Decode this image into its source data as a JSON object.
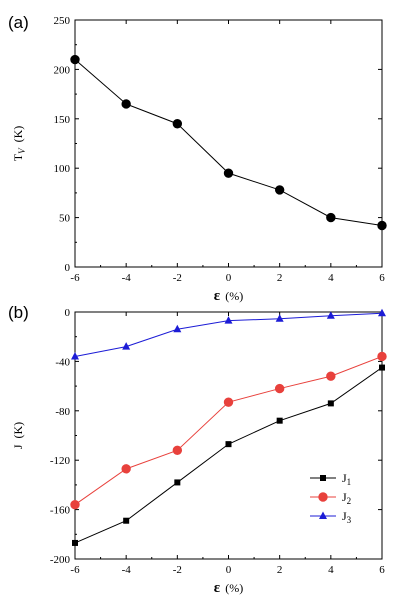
{
  "chart_data": [
    {
      "type": "line",
      "panel_label": "(a)",
      "x": [
        -6,
        -4,
        -2,
        0,
        2,
        4,
        6
      ],
      "series": [
        {
          "values": [
            210,
            165,
            145,
            95,
            78,
            50,
            42
          ],
          "color": "#000000",
          "marker": "circle"
        }
      ],
      "xlabel": {
        "main": "ε",
        "unit": "(%)"
      },
      "ylabel": {
        "main": "T",
        "sub": "V",
        "unit": "(K)"
      },
      "xlim": [
        -6,
        6
      ],
      "ylim": [
        0,
        250
      ],
      "xticks": [
        "-6",
        "-4",
        "-2",
        "0",
        "2",
        "4",
        "6"
      ],
      "yticks": [
        "0",
        "50",
        "100",
        "150",
        "200",
        "250"
      ],
      "grid": false
    },
    {
      "type": "line",
      "panel_label": "(b)",
      "x": [
        -6,
        -4,
        -2,
        0,
        2,
        4,
        6
      ],
      "series": [
        {
          "name": "J",
          "sub": "1",
          "values": [
            -187,
            -169,
            -138,
            -107,
            -88,
            -74,
            -45
          ],
          "color": "#000000",
          "marker": "square"
        },
        {
          "name": "J",
          "sub": "2",
          "values": [
            -156,
            -127,
            -112,
            -73,
            -62,
            -52,
            -36
          ],
          "color": "#e8413c",
          "marker": "circle"
        },
        {
          "name": "J",
          "sub": "3",
          "values": [
            -36,
            -28,
            -14,
            -7,
            -5.5,
            -3,
            -1
          ],
          "color": "#1c1cd6",
          "marker": "triangle"
        }
      ],
      "xlabel": {
        "main": "ε",
        "unit": "(%)"
      },
      "ylabel": {
        "main": "J",
        "unit": "(K)"
      },
      "xlim": [
        -6,
        6
      ],
      "ylim": [
        -200,
        0
      ],
      "xticks": [
        "-6",
        "-4",
        "-2",
        "0",
        "2",
        "4",
        "6"
      ],
      "yticks": [
        "-200",
        "-160",
        "-120",
        "-80",
        "-40",
        "0"
      ],
      "legend_position": "center-right",
      "grid": false
    }
  ]
}
